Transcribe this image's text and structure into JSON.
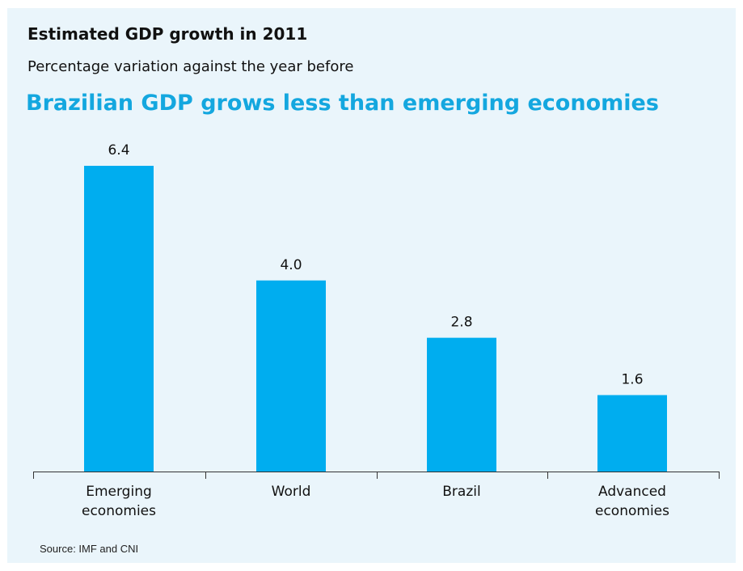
{
  "chart_title": "Estimated GDP growth in 2011",
  "chart_subtitle": "Percentage variation against the year before",
  "headline": "Brazilian GDP grows less than emerging economies",
  "source": "Source: IMF and CNI",
  "colors": {
    "background": "#eaf5fb",
    "bar": "#00adef",
    "headline": "#14a7df"
  },
  "chart_data": {
    "type": "bar",
    "title": "Estimated GDP growth in 2011",
    "subtitle": "Percentage variation against the year before",
    "categories": [
      "Emerging economies",
      "World",
      "Brazil",
      "Advanced economies"
    ],
    "category_label_lines": [
      [
        "Emerging",
        "economies"
      ],
      [
        "World"
      ],
      [
        "Brazil"
      ],
      [
        "Advanced",
        "economies"
      ]
    ],
    "values": [
      6.4,
      4.0,
      2.8,
      1.6
    ],
    "value_labels": [
      "6.4",
      "4.0",
      "2.8",
      "1.6"
    ],
    "ylim": [
      0,
      6.4
    ],
    "xlabel": "",
    "ylabel": "",
    "grid": false,
    "legend": "none"
  }
}
